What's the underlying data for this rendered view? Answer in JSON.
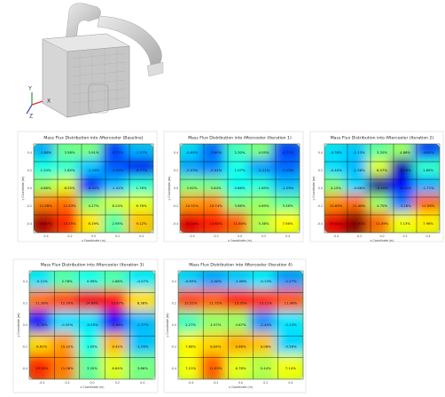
{
  "render": {
    "axes": [
      "Y",
      "X",
      "Z"
    ]
  },
  "xticks": [
    "-0.4",
    "-0.2",
    "0.0",
    "0.2",
    "0.4"
  ],
  "yticks": [
    "0.4",
    "0.2",
    "0.0",
    "-0.2",
    "-0.4"
  ],
  "xlabel": "x Coordinate (m)",
  "ylabel": "y Coordinate (m)",
  "panels": [
    {
      "title": "Mass Flux Distribution into Aftercooler (Baseline)",
      "cells": [
        [
          "-1.86%",
          "3.56%",
          "3.91%",
          "-4.77%",
          "-1.57%"
        ],
        [
          "1.20%",
          "1.85%",
          "-1.16%",
          "-3.99%",
          "-6.77%"
        ],
        [
          "4.66%",
          "6.55%",
          "-6.45%",
          "-1.41%",
          "1.76%"
        ],
        [
          "11.08%",
          "11.43%",
          "4.27%",
          "6.24%",
          "6.76%"
        ],
        [
          "16.67%",
          "13.25%",
          "8.19%",
          "2.95%",
          "9.12%"
        ]
      ]
    },
    {
      "title": "Mass Flux Distribution into Aftercooler (Iteration 1)",
      "cells": [
        [
          "-0.69%",
          "-3.60%",
          "2.30%",
          "4.05%",
          "-4.77%"
        ],
        [
          "-2.03%",
          "-2.91%",
          "1.07%",
          "-2.21%",
          "-3.55%"
        ],
        [
          "3.92%",
          "3.64%",
          "0.86%",
          "1.65%",
          "-1.29%"
        ],
        [
          "10.31%",
          "10.74%",
          "3.86%",
          "4.69%",
          "3.26%"
        ],
        [
          "15.14%",
          "13.60%",
          "11.84%",
          "5.38%",
          "7.56%"
        ]
      ]
    },
    {
      "title": "Mass Flux Distribution into Aftercooler (Iteration 2)",
      "cells": [
        [
          "-0.38%",
          "-1.13%",
          "3.20%",
          "4.86%",
          "-4.81%"
        ],
        [
          "-0.40%",
          "-1.38%",
          "6.57%",
          "-8.78%",
          "1.85%"
        ],
        [
          "4.15%",
          "-0.66%",
          "-9.49%",
          "-6.42%",
          "-1.71%"
        ],
        [
          "10.69%",
          "11.46%",
          "4.70%",
          "-3.26%",
          "11.56%"
        ],
        [
          "15.01%",
          "17.60%",
          "11.49%",
          "7.13%",
          "7.96%"
        ]
      ]
    },
    {
      "title": "Mass Flux Distribution into Aftercooler (Iteration 3)",
      "cells": [
        [
          "-0.21%",
          "2.78%",
          "0.99%",
          "2.68%",
          "-0.07%"
        ],
        [
          "11.38%",
          "12.33%",
          "14.86%",
          "13.87%",
          "8.38%"
        ],
        [
          "-5.76%",
          "-0.35%",
          "-0.25%",
          "-5.86%",
          "-1.37%"
        ],
        [
          "8.62%",
          "10.22%",
          "1.05%",
          "9.42%",
          "-1.09%"
        ],
        [
          "13.28%",
          "11.06%",
          "3.20%",
          "6.64%",
          "3.86%"
        ]
      ]
    },
    {
      "title": "Mass Flux Distribution into Aftercooler (Iteration 4)",
      "cells": [
        [
          "-0.83%",
          "-2.00%",
          "-1.06%",
          "-0.13%",
          "-2.27%"
        ],
        [
          "12.51%",
          "11.72%",
          "13.35%",
          "13.11%",
          "11.96%"
        ],
        [
          "2.27%",
          "4.57%",
          "4.67%",
          "-2.44%",
          "-0.14%"
        ],
        [
          "7.68%",
          "8.64%",
          "9.66%",
          "9.08%",
          "-0.58%"
        ],
        [
          "7.21%",
          "11.83%",
          "6.78%",
          "5.44%",
          "7.14%"
        ]
      ]
    }
  ]
}
